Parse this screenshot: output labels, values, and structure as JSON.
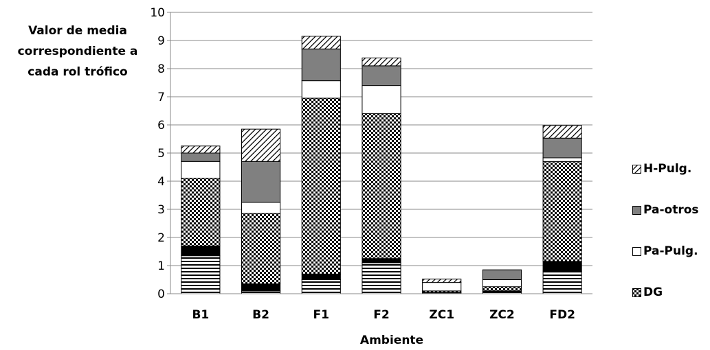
{
  "chart_data": {
    "type": "bar",
    "stacked": true,
    "title": "",
    "xlabel": "Ambiente",
    "ylabel": "Valor de media correspondiente a cada rol trófico",
    "ylabel_lines": [
      "Valor de media",
      "correspondiente a",
      "cada rol trófico"
    ],
    "ylim": [
      0,
      10
    ],
    "yticks": [
      "0",
      "1",
      "2",
      "3",
      "4",
      "5",
      "6",
      "7",
      "8",
      "9",
      "10"
    ],
    "grid": true,
    "legend_position": "right",
    "categories": [
      "B1",
      "B2",
      "F1",
      "F2",
      "ZC1",
      "ZC2",
      "FD2"
    ],
    "series": [
      {
        "values": [
          1.35,
          0.1,
          0.5,
          1.1,
          0.03,
          0.05,
          0.8
        ],
        "pattern": "hstripes",
        "in_legend": false
      },
      {
        "values": [
          0.35,
          0.25,
          0.2,
          0.15,
          0.02,
          0.05,
          0.35
        ],
        "pattern": "black",
        "in_legend": false
      },
      {
        "name": "DG",
        "values": [
          2.4,
          2.5,
          6.25,
          5.15,
          0.05,
          0.15,
          3.55
        ],
        "pattern": "check"
      },
      {
        "name": "Pa-Pulg.",
        "values": [
          0.6,
          0.4,
          0.62,
          1.0,
          0.3,
          0.25,
          0.13
        ],
        "pattern": "white"
      },
      {
        "name": "Pa-otros",
        "values": [
          0.3,
          1.45,
          1.13,
          0.7,
          0.0,
          0.35,
          0.7
        ],
        "pattern": "gray"
      },
      {
        "name": "H-Pulg.",
        "values": [
          0.25,
          1.15,
          0.45,
          0.28,
          0.12,
          0.0,
          0.45
        ],
        "pattern": "diag"
      }
    ],
    "legend_order": [
      "H-Pulg.",
      "Pa-otros",
      "Pa-Pulg.",
      "DG"
    ],
    "colors": {
      "gray": "#808080",
      "black": "#000000",
      "white": "#ffffff",
      "grid": "#888888"
    }
  }
}
